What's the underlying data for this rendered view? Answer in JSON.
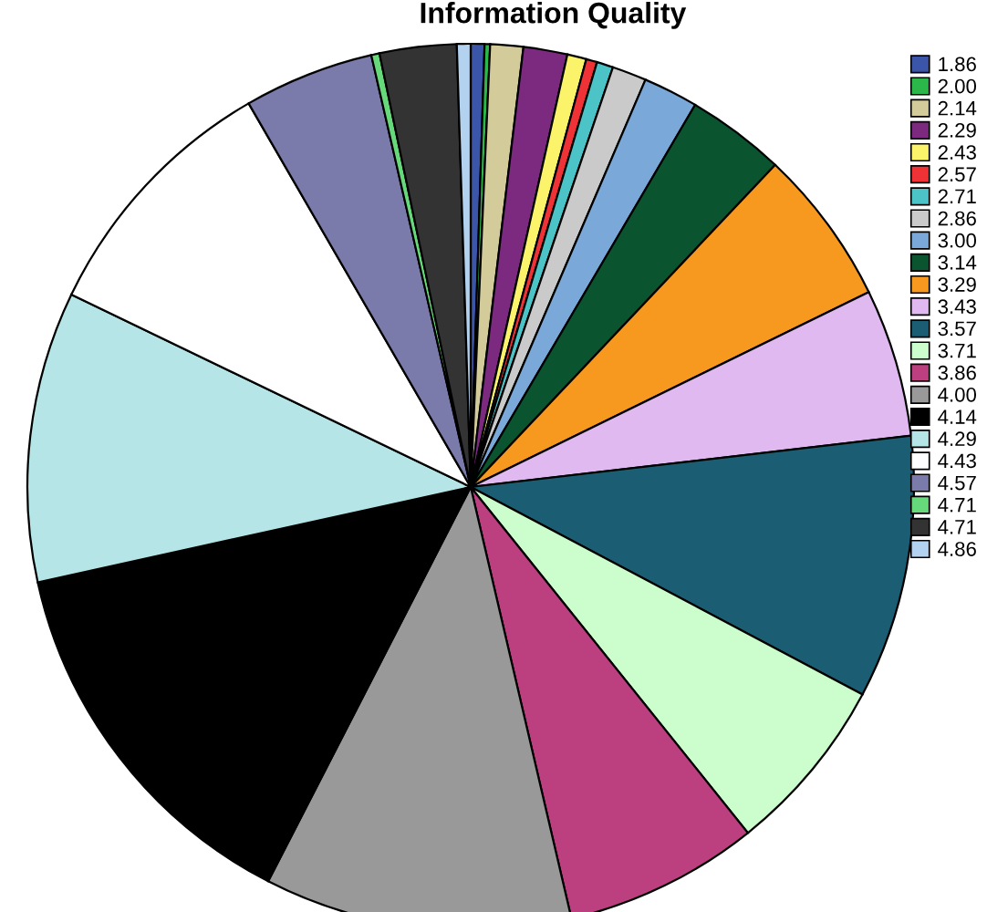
{
  "chart_data": {
    "type": "pie",
    "title": "Information Quality",
    "categories": [
      "1.86",
      "2.00",
      "2.14",
      "2.29",
      "2.43",
      "2.57",
      "2.71",
      "2.86",
      "3.00",
      "3.14",
      "3.29",
      "3.43",
      "3.57",
      "3.71",
      "3.86",
      "4.00",
      "4.14",
      "4.29",
      "4.43",
      "4.57",
      "4.71",
      "4.71",
      "4.86"
    ],
    "values": [
      0.5,
      0.2,
      1.2,
      1.6,
      0.7,
      0.4,
      0.6,
      1.25,
      2.0,
      3.6,
      5.7,
      5.4,
      9.6,
      6.5,
      7.1,
      11.2,
      14.0,
      10.6,
      9.5,
      4.75,
      0.3,
      2.8,
      0.5
    ],
    "colors": [
      "#3b55a8",
      "#2cb74a",
      "#d3cc9a",
      "#7b2a7f",
      "#fbf46b",
      "#ef3235",
      "#4cc3c6",
      "#cacaca",
      "#7aa8d8",
      "#0a5530",
      "#f7991e",
      "#dfb9f0",
      "#1b5e73",
      "#ccfdcc",
      "#bc4080",
      "#999999",
      "#000000",
      "#b5e5e7",
      "#ffffff",
      "#7a7aab",
      "#66d97a",
      "#333333",
      "#b3d2ef"
    ],
    "legend": "right"
  }
}
